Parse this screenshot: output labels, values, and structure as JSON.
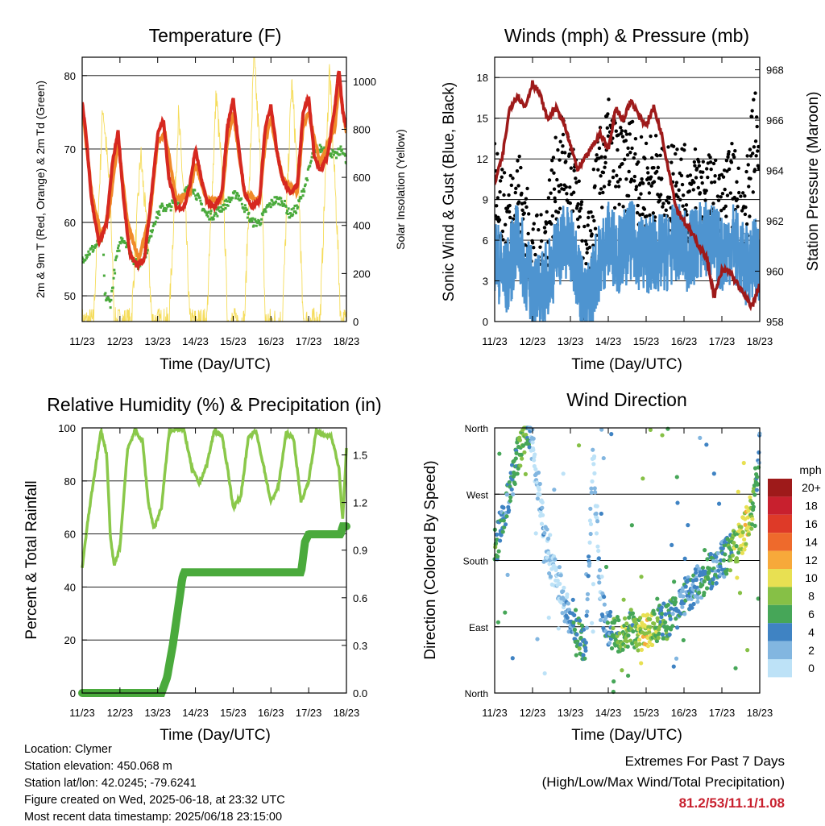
{
  "panels": {
    "temperature": {
      "title": "Temperature (F)",
      "ylabel_left": "2m & 9m T (Red, Orange) & 2m Td (Green)",
      "ylabel_right": "Solar Insolation (Yellow)",
      "xlabel": "Time (Day/UTC)"
    },
    "winds": {
      "title": "Winds (mph) & Pressure (mb)",
      "ylabel_left": "Sonic Wind & Gust (Blue, Black)",
      "ylabel_right": "Station Pressure (Maroon)",
      "xlabel": "Time (Day/UTC)"
    },
    "humidity": {
      "title": "Relative Humidity (%) & Precipitation (in)",
      "ylabel_left": "Percent & Total Rainfall",
      "xlabel": "Time (Day/UTC)"
    },
    "direction": {
      "title": "Wind Direction",
      "ylabel_left": "Direction (Colored By Speed)",
      "xlabel": "Time (Day/UTC)",
      "colorbar_title": "mph",
      "colorbar_labels": [
        "20+",
        "18",
        "16",
        "14",
        "12",
        "10",
        "8",
        "6",
        "4",
        "2",
        "0"
      ],
      "colorbar_colors": [
        "#9e1a1a",
        "#c8202e",
        "#de3a28",
        "#ee6a2c",
        "#f7a93a",
        "#e8e052",
        "#86c046",
        "#46a658",
        "#3f83c3",
        "#82b6e0",
        "#bde2f7"
      ]
    }
  },
  "info": {
    "location": "Location: Clymer",
    "elevation": "Station elevation: 450.068 m",
    "latlon": "Station lat/lon: 42.0245; -79.6241",
    "created": "Figure created on Wed, 2025-06-18, at 23:32 UTC",
    "recent": "Most recent data timestamp: 2025/06/18 23:15:00"
  },
  "extremes": {
    "heading": "Extremes For Past 7 Days",
    "sub": "(High/Low/Max Wind/Total Precipitation)",
    "values": "81.2/53/11.1/1.08"
  },
  "chart_data": [
    {
      "type": "line",
      "title": "Temperature (F)",
      "xlabel": "Time (Day/UTC)",
      "ylabel": "2m & 9m T (Red, Orange) & 2m Td (Green)",
      "ylabel_right": "Solar Insolation (Yellow)",
      "xticks": [
        "11/23",
        "12/23",
        "13/23",
        "14/23",
        "15/23",
        "16/23",
        "17/23",
        "18/23"
      ],
      "xlim": [
        0,
        7
      ],
      "ylim": [
        46.5,
        82.5
      ],
      "yticks": [
        50,
        60,
        70,
        80
      ],
      "ylim_right": [
        0,
        1100
      ],
      "yticks_right": [
        0,
        200,
        400,
        600,
        800,
        1000
      ],
      "series": [
        {
          "color": "#d62820",
          "axis": "left",
          "x": [
            0,
            0.1,
            0.25,
            0.45,
            0.65,
            0.8,
            0.95,
            1.1,
            1.25,
            1.45,
            1.65,
            1.8,
            2.0,
            2.15,
            2.3,
            2.5,
            2.7,
            2.85,
            3.0,
            3.15,
            3.3,
            3.5,
            3.7,
            3.85,
            4.0,
            4.15,
            4.3,
            4.5,
            4.7,
            4.85,
            5.0,
            5.15,
            5.3,
            5.5,
            5.7,
            5.85,
            6.0,
            6.15,
            6.3,
            6.5,
            6.7,
            6.8,
            6.9,
            7.0
          ],
          "y": [
            76.5,
            72,
            63,
            57,
            60,
            68,
            72.5,
            63,
            56,
            54,
            55,
            62,
            72,
            74,
            66,
            62,
            62,
            65,
            70,
            66,
            63,
            62,
            64,
            73,
            77,
            70,
            64,
            62,
            63,
            73,
            76,
            70,
            66,
            64,
            65,
            75,
            77,
            69,
            67,
            69,
            76,
            81,
            75,
            73
          ]
        },
        {
          "color": "#f08a2a",
          "axis": "left",
          "x": [
            0,
            0.25,
            0.5,
            0.7,
            0.95,
            1.2,
            1.5,
            1.8,
            2.0,
            2.2,
            2.5,
            2.85,
            3.0,
            3.3,
            3.7,
            3.85,
            4.0,
            4.3,
            4.7,
            4.85,
            5.0,
            5.3,
            5.7,
            5.85,
            6.0,
            6.3,
            6.7,
            6.8,
            7.0
          ],
          "y": [
            76,
            64,
            58,
            61,
            71,
            60,
            55,
            61,
            71,
            72,
            63,
            64,
            68,
            63,
            63,
            71,
            75,
            64,
            63,
            71,
            74,
            66,
            64,
            73,
            75,
            68,
            73,
            79,
            72
          ]
        },
        {
          "color": "#4aaa3c",
          "axis": "left",
          "x": [
            0,
            0.2,
            0.4,
            0.55,
            0.6,
            0.75,
            0.9,
            1.05,
            1.2,
            1.35,
            1.5,
            1.7,
            1.9,
            2.1,
            2.3,
            2.5,
            2.7,
            2.9,
            3.1,
            3.3,
            3.5,
            3.7,
            3.9,
            4.1,
            4.3,
            4.5,
            4.7,
            4.9,
            5.1,
            5.3,
            5.5,
            5.7,
            5.9,
            6.1,
            6.3,
            6.5,
            6.7,
            6.9,
            7.0
          ],
          "y": [
            55,
            56,
            57,
            58,
            50,
            49,
            55,
            58,
            57,
            55,
            54,
            56,
            60,
            62,
            62,
            63,
            64,
            65,
            63,
            61,
            61,
            62,
            63,
            64,
            62,
            60,
            60,
            62,
            63,
            63,
            61,
            62,
            65,
            69,
            70,
            70,
            69,
            70,
            68
          ]
        },
        {
          "color": "#f5dc5a",
          "axis": "right",
          "note": "daily solar insolation pulses",
          "x": [
            0,
            0.3,
            0.55,
            0.75,
            0.85,
            1.0,
            1.3,
            1.55,
            1.75,
            1.85,
            2.0,
            2.3,
            2.55,
            2.75,
            2.85,
            3.0,
            3.3,
            3.55,
            3.75,
            3.85,
            4.0,
            4.3,
            4.55,
            4.75,
            4.85,
            5.0,
            5.3,
            5.55,
            5.75,
            5.85,
            6.0,
            6.3,
            6.55,
            6.75,
            6.85,
            7.0
          ],
          "y": [
            0,
            0,
            900,
            500,
            0,
            0,
            0,
            700,
            300,
            0,
            0,
            0,
            850,
            400,
            0,
            0,
            0,
            950,
            500,
            0,
            0,
            0,
            1100,
            600,
            0,
            0,
            0,
            1000,
            500,
            0,
            0,
            0,
            1050,
            400,
            0,
            0
          ]
        }
      ]
    },
    {
      "type": "line",
      "title": "Winds (mph) & Pressure (mb)",
      "xlabel": "Time (Day/UTC)",
      "ylabel": "Sonic Wind & Gust (Blue, Black)",
      "ylabel_right": "Station Pressure (Maroon)",
      "xticks": [
        "11/23",
        "12/23",
        "13/23",
        "14/23",
        "15/23",
        "16/23",
        "17/23",
        "18/23"
      ],
      "xlim": [
        0,
        7
      ],
      "ylim": [
        0,
        19.5
      ],
      "yticks": [
        0,
        3,
        6,
        9,
        12,
        15,
        18
      ],
      "ylim_right": [
        958,
        968.5
      ],
      "yticks_right": [
        958,
        960,
        962,
        964,
        966,
        968
      ],
      "series": [
        {
          "color": "#9e1a1a",
          "axis": "right",
          "x": [
            0,
            0.2,
            0.4,
            0.6,
            0.8,
            1.0,
            1.2,
            1.4,
            1.6,
            1.8,
            2.0,
            2.2,
            2.4,
            2.6,
            2.8,
            3.0,
            3.2,
            3.4,
            3.6,
            3.8,
            4.0,
            4.2,
            4.4,
            4.6,
            4.8,
            5.0,
            5.2,
            5.4,
            5.6,
            5.8,
            6.0,
            6.2,
            6.4,
            6.6,
            6.8,
            7.0
          ],
          "y": [
            963.5,
            964.5,
            966.5,
            967,
            966.5,
            967.5,
            967.0,
            966.0,
            966.5,
            966.0,
            965.0,
            964.0,
            964.5,
            965.0,
            965.5,
            964.8,
            966.5,
            966.0,
            966.8,
            966.2,
            965.8,
            966.5,
            965.5,
            964.0,
            962.5,
            962.0,
            961.5,
            961.0,
            960.5,
            959.0,
            960.0,
            960.0,
            959.5,
            959.0,
            958.6,
            959.5
          ]
        },
        {
          "color": "#4e94d0",
          "axis": "left",
          "note": "sonic wind",
          "x": [
            0,
            0.3,
            0.6,
            0.9,
            1.2,
            1.5,
            1.8,
            2.1,
            2.4,
            2.7,
            3.0,
            3.3,
            3.6,
            3.9,
            4.2,
            4.5,
            4.8,
            5.1,
            5.4,
            5.7,
            6.0,
            6.3,
            6.6,
            6.9,
            7.0
          ],
          "y": [
            5,
            3,
            6,
            3,
            2,
            4,
            6,
            5,
            1,
            4,
            6,
            5,
            6,
            5,
            5,
            5,
            6,
            5,
            6,
            6,
            5,
            6,
            4,
            5,
            3
          ]
        },
        {
          "color": "#000000",
          "axis": "left",
          "note": "gusts",
          "x": [
            0,
            0.3,
            0.6,
            0.9,
            1.2,
            1.5,
            1.8,
            2.1,
            2.4,
            2.7,
            3.0,
            3.3,
            3.6,
            3.9,
            4.2,
            4.5,
            4.8,
            5.1,
            5.4,
            5.7,
            6.0,
            6.3,
            6.6,
            6.9,
            7.0
          ],
          "y": [
            11,
            7,
            10,
            6,
            4,
            9,
            12,
            10,
            3,
            10,
            13,
            11,
            12,
            10,
            11,
            9,
            11,
            9,
            10,
            9,
            8,
            10,
            7,
            15,
            8
          ]
        }
      ]
    },
    {
      "type": "line",
      "title": "Relative Humidity (%) & Precipitation (in)",
      "xlabel": "Time (Day/UTC)",
      "ylabel": "Percent & Total Rainfall",
      "xticks": [
        "11/23",
        "12/23",
        "13/23",
        "14/23",
        "15/23",
        "16/23",
        "17/23",
        "18/23"
      ],
      "xlim": [
        0,
        7
      ],
      "ylim": [
        0,
        100
      ],
      "yticks": [
        0,
        20,
        40,
        60,
        80,
        100
      ],
      "ylim_right": [
        0,
        1.67
      ],
      "yticks_right": [
        "0.0",
        "0.3",
        "0.6",
        "0.9",
        "1.2",
        "1.5"
      ],
      "series": [
        {
          "color": "#8ac84a",
          "axis": "left",
          "note": "relative humidity",
          "x": [
            0,
            0.15,
            0.35,
            0.5,
            0.65,
            0.75,
            0.85,
            1.0,
            1.2,
            1.4,
            1.6,
            1.75,
            1.9,
            2.1,
            2.3,
            2.5,
            2.7,
            2.9,
            3.1,
            3.3,
            3.5,
            3.7,
            3.85,
            4.0,
            4.2,
            4.4,
            4.6,
            4.8,
            5.0,
            5.2,
            5.4,
            5.6,
            5.8,
            6.0,
            6.2,
            6.4,
            6.6,
            6.8,
            6.9,
            7.0
          ],
          "y": [
            47,
            65,
            85,
            99,
            90,
            58,
            48,
            55,
            92,
            99,
            95,
            72,
            62,
            70,
            98,
            100,
            99,
            85,
            79,
            86,
            99,
            97,
            85,
            70,
            74,
            96,
            99,
            86,
            72,
            78,
            98,
            96,
            72,
            80,
            99,
            97,
            97,
            85,
            65,
            92
          ]
        },
        {
          "color": "#4aaa3c",
          "axis": "right",
          "note": "total rainfall (in)",
          "x": [
            0,
            2.1,
            2.25,
            2.4,
            2.55,
            2.65,
            2.7,
            3.0,
            4.0,
            5.0,
            5.8,
            5.85,
            5.9,
            6.0,
            6.5,
            6.85,
            6.9,
            7.0
          ],
          "y": [
            0,
            0,
            0.1,
            0.3,
            0.55,
            0.72,
            0.76,
            0.76,
            0.76,
            0.76,
            0.76,
            0.85,
            0.95,
            1.0,
            1.0,
            1.0,
            1.05,
            1.05
          ]
        }
      ]
    },
    {
      "type": "scatter",
      "title": "Wind Direction",
      "xlabel": "Time (Day/UTC)",
      "ylabel": "Direction (Colored By Speed)",
      "xticks": [
        "11/23",
        "12/23",
        "13/23",
        "14/23",
        "15/23",
        "16/23",
        "17/23",
        "18/23"
      ],
      "xlim": [
        0,
        7
      ],
      "ylim": [
        0,
        360
      ],
      "yticks": [
        "North",
        "East",
        "South",
        "West",
        "North"
      ],
      "colorbar": {
        "title": "mph",
        "levels": [
          "0",
          "2",
          "4",
          "6",
          "8",
          "10",
          "12",
          "14",
          "16",
          "18",
          "20+"
        ]
      },
      "series": [
        {
          "note": "wind direction (degrees) colored by speed (mph)",
          "x": [
            0.05,
            0.15,
            0.3,
            0.45,
            0.6,
            0.75,
            0.85,
            0.95,
            1.1,
            1.3,
            1.5,
            1.7,
            1.9,
            2.1,
            2.2,
            2.4,
            2.6,
            2.8,
            3.0,
            3.2,
            3.4,
            3.6,
            3.8,
            4.0,
            4.2,
            4.4,
            4.6,
            4.8,
            5.0,
            5.2,
            5.4,
            5.6,
            5.8,
            6.0,
            6.2,
            6.4,
            6.6,
            6.8,
            6.9,
            7.0
          ],
          "y": [
            200,
            225,
            250,
            285,
            320,
            340,
            355,
            350,
            300,
            220,
            170,
            150,
            110,
            100,
            80,
            60,
            330,
            120,
            90,
            80,
            75,
            90,
            80,
            85,
            90,
            95,
            100,
            110,
            130,
            140,
            150,
            160,
            170,
            180,
            190,
            200,
            220,
            250,
            290,
            330
          ],
          "speed": [
            6,
            4,
            4,
            4,
            6,
            8,
            6,
            2,
            0,
            2,
            0,
            0,
            2,
            4,
            6,
            4,
            0,
            2,
            4,
            6,
            8,
            6,
            8,
            10,
            8,
            6,
            6,
            4,
            4,
            4,
            4,
            6,
            4,
            4,
            6,
            8,
            10,
            8,
            6,
            4
          ]
        }
      ]
    }
  ]
}
